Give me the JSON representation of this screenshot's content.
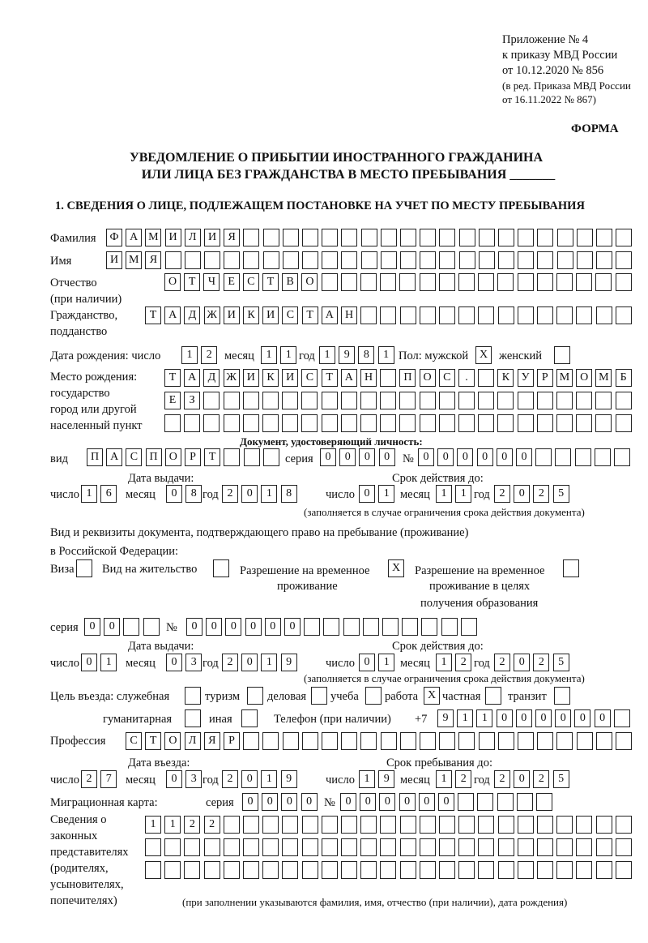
{
  "header": {
    "annex": [
      "Приложение № 4",
      "к приказу МВД России",
      "от 10.12.2020 № 856"
    ],
    "edition": [
      "(в ред. Приказа МВД России",
      "от 16.11.2022 № 867)"
    ],
    "form_label": "ФОРМА",
    "title_1": "УВЕДОМЛЕНИЕ О ПРИБЫТИИ ИНОСТРАННОГО ГРАЖДАНИНА",
    "title_2": "ИЛИ ЛИЦА БЕЗ ГРАЖДАНСТВА В МЕСТО ПРЕБЫВАНИЯ _______",
    "section_1": "1. СВЕДЕНИЯ О ЛИЦЕ, ПОДЛЕЖАЩЕМ ПОСТАНОВКЕ НА УЧЕТ ПО МЕСТУ ПРЕБЫВАНИЯ"
  },
  "labels": {
    "surname": "Фамилия",
    "name": "Имя",
    "patronymic_1": "Отчество",
    "patronymic_2": "(при наличии)",
    "citizenship_1": "Гражданство,",
    "citizenship_2": "подданство",
    "birth_date": "Дата рождения:  число",
    "month": "месяц",
    "year": "год",
    "day": "число",
    "sex": "Пол: мужской",
    "female": "женский",
    "birthplace_1": "Место рождения:",
    "birthplace_2": "государство",
    "birthplace_3": "город или другой",
    "birthplace_4": "населенный пункт",
    "id_doc": "Документ, удостоверяющий личность:",
    "kind": "вид",
    "series": "серия",
    "number": "№",
    "issue_date": "Дата выдачи:",
    "valid_until": "Срок действия до:",
    "validity_note": "(заполняется в случае ограничения срока действия документа)",
    "stay_doc_1": "Вид и реквизиты документа, подтверждающего право на пребывание (проживание)",
    "stay_doc_2": "в Российской Федерации:",
    "visa": "Виза",
    "residence": "Вид на жительство",
    "trp_1": "Разрешение на временное",
    "trp_2": "проживание",
    "trp_edu_1": "Разрешение на временное",
    "trp_edu_2": "проживание в целях",
    "trp_edu_3": "получения образования",
    "purpose": "Цель въезда: служебная",
    "tourism": "туризм",
    "business": "деловая",
    "study": "учеба",
    "work": "работа",
    "private": "частная",
    "transit": "транзит",
    "humanitarian": "гуманитарная",
    "other": "иная",
    "phone": "Телефон (при наличии)",
    "phone_prefix": "+7",
    "profession": "Профессия",
    "entry_date": "Дата въезда:",
    "stay_until": "Срок пребывания до:",
    "migration_card": "Миграционная карта:",
    "reps_1": "Сведения о",
    "reps_2": "законных",
    "reps_3": "представителях",
    "reps_4": "(родителях,",
    "reps_5": "усыновителях,",
    "reps_6": "попечителях)",
    "reps_note": "(при заполнении указываются фамилия, имя, отчество (при наличии), дата рождения)"
  },
  "fields": {
    "surname": [
      "Ф",
      "А",
      "М",
      "И",
      "Л",
      "И",
      "Я"
    ],
    "name": [
      "И",
      "М",
      "Я"
    ],
    "patronymic": [
      "О",
      "Т",
      "Ч",
      "Е",
      "С",
      "Т",
      "В",
      "О"
    ],
    "citizenship": [
      "Т",
      "А",
      "Д",
      "Ж",
      "И",
      "К",
      "И",
      "С",
      "Т",
      "А",
      "Н"
    ],
    "birth_day": [
      "1",
      "2"
    ],
    "birth_month": [
      "1",
      "1"
    ],
    "birth_year": [
      "1",
      "9",
      "8",
      "1"
    ],
    "sex_male": [
      "X"
    ],
    "sex_female": [
      ""
    ],
    "birthplace_1": [
      "Т",
      "А",
      "Д",
      "Ж",
      "И",
      "К",
      "И",
      "С",
      "Т",
      "А",
      "Н",
      "",
      "П",
      "О",
      "С",
      ".",
      "",
      "К",
      "У",
      "Р",
      "М",
      "О",
      "М",
      "Б"
    ],
    "birthplace_2": [
      "Е",
      "З"
    ],
    "birthplace_3": [],
    "id_kind": [
      "П",
      "А",
      "С",
      "П",
      "О",
      "Р",
      "Т"
    ],
    "id_series": [
      "0",
      "0",
      "0",
      "0"
    ],
    "id_number": [
      "0",
      "0",
      "0",
      "0",
      "0",
      "0"
    ],
    "id_issue_day": [
      "1",
      "6"
    ],
    "id_issue_month": [
      "0",
      "8"
    ],
    "id_issue_year": [
      "2",
      "0",
      "1",
      "8"
    ],
    "id_valid_day": [
      "0",
      "1"
    ],
    "id_valid_month": [
      "1",
      "1"
    ],
    "id_valid_year": [
      "2",
      "0",
      "2",
      "5"
    ],
    "doc_visa": [
      ""
    ],
    "doc_residence": [
      ""
    ],
    "doc_trp": [
      "X"
    ],
    "doc_trp_edu": [
      ""
    ],
    "doc_series": [
      "0",
      "0"
    ],
    "doc_number": [
      "0",
      "0",
      "0",
      "0",
      "0",
      "0"
    ],
    "doc_issue_day": [
      "0",
      "1"
    ],
    "doc_issue_month": [
      "0",
      "3"
    ],
    "doc_issue_year": [
      "2",
      "0",
      "1",
      "9"
    ],
    "doc_valid_day": [
      "0",
      "1"
    ],
    "doc_valid_month": [
      "1",
      "2"
    ],
    "doc_valid_year": [
      "2",
      "0",
      "2",
      "5"
    ],
    "purpose_official": [
      ""
    ],
    "purpose_tourism": [
      ""
    ],
    "purpose_business": [
      ""
    ],
    "purpose_study": [
      ""
    ],
    "purpose_work": [
      "X"
    ],
    "purpose_private": [
      ""
    ],
    "purpose_transit": [
      ""
    ],
    "purpose_humanitarian": [
      ""
    ],
    "purpose_other": [
      ""
    ],
    "phone": [
      "9",
      "1",
      "1",
      "0",
      "0",
      "0",
      "0",
      "0",
      "0"
    ],
    "profession": [
      "С",
      "Т",
      "О",
      "Л",
      "Я",
      "Р"
    ],
    "entry_day": [
      "2",
      "7"
    ],
    "entry_month": [
      "0",
      "3"
    ],
    "entry_year": [
      "2",
      "0",
      "1",
      "9"
    ],
    "stay_day": [
      "1",
      "9"
    ],
    "stay_month": [
      "1",
      "2"
    ],
    "stay_year": [
      "2",
      "0",
      "2",
      "5"
    ],
    "mc_series": [
      "0",
      "0",
      "0",
      "0"
    ],
    "mc_number": [
      "0",
      "0",
      "0",
      "0",
      "0",
      "0"
    ],
    "reps_1": [
      "1",
      "1",
      "2",
      "2"
    ],
    "reps_2": [],
    "reps_3": []
  }
}
